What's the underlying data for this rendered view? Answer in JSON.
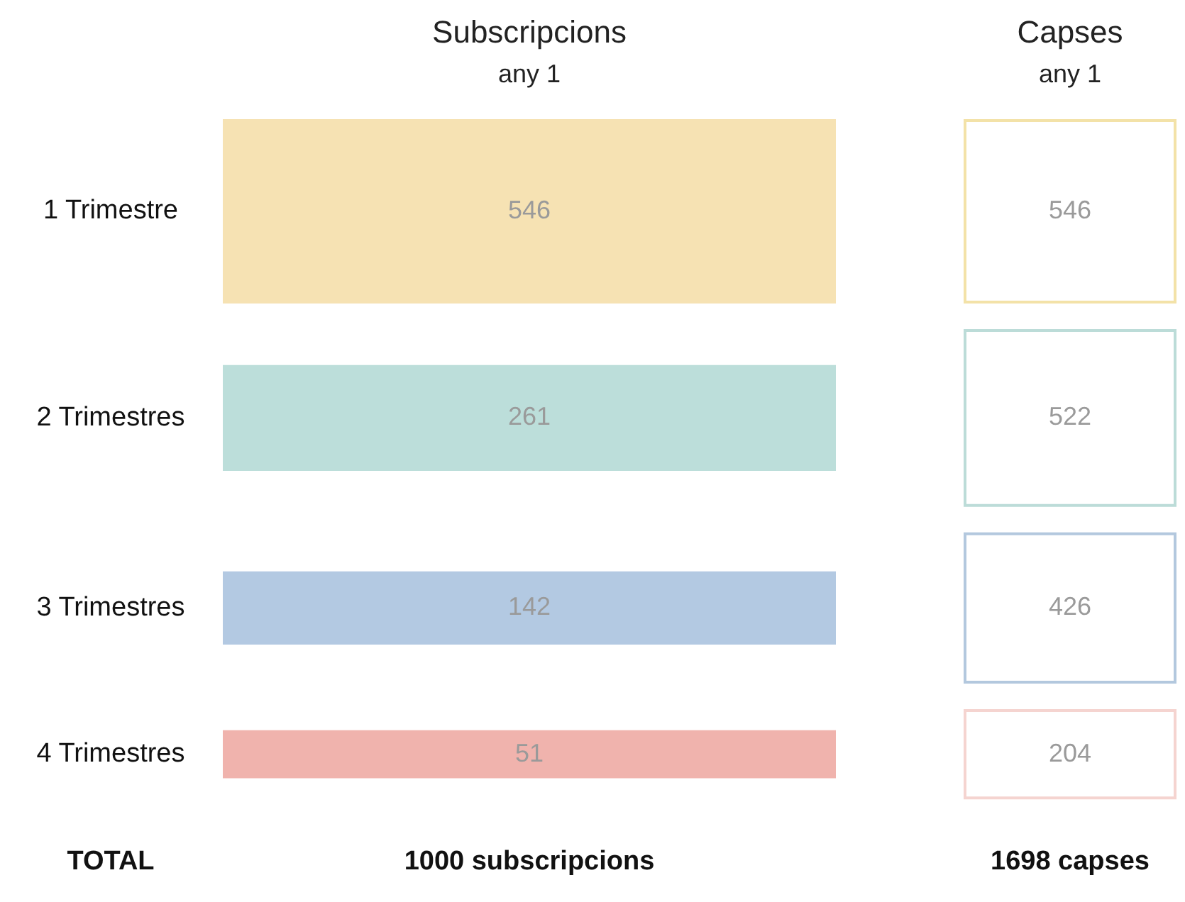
{
  "chart_data": {
    "type": "other",
    "categories": [
      "1 Trimestre",
      "2 Trimestres",
      "3 Trimestres",
      "4 Trimestres"
    ],
    "series": [
      {
        "name": "Subscripcions\nany 1",
        "colors": [
          "#f6e2b3",
          "#bcdeda",
          "#b3c9e2",
          "#f0b3ad"
        ],
        "values": [
          546,
          261,
          142,
          51
        ]
      },
      {
        "name": "Capses\nany 1",
        "colors": [
          "#f3e2a8",
          "#bcdcd8",
          "#b3c8de",
          "#f5d4d0"
        ],
        "values": [
          546,
          522,
          426,
          204
        ]
      }
    ],
    "data_labels": true,
    "annotations": [
      "TOTAL",
      "1000 subscripcions",
      "1698 capses"
    ]
  }
}
